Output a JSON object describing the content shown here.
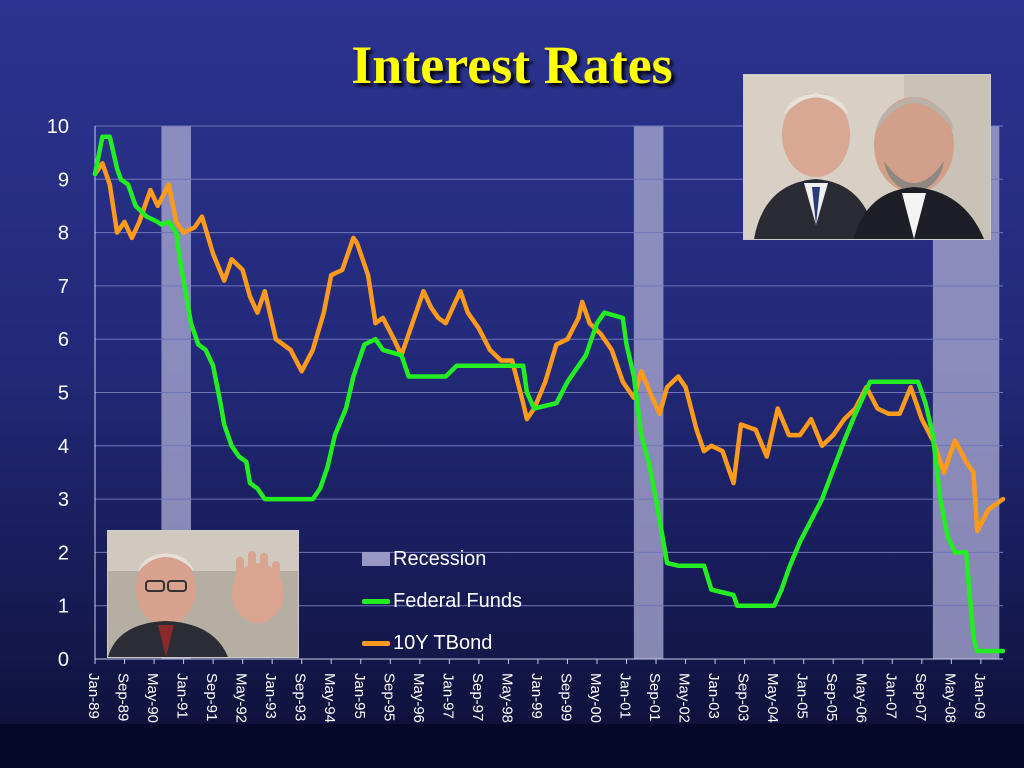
{
  "title": "Interest Rates",
  "chart_data": {
    "type": "line",
    "ylim": [
      0,
      10
    ],
    "y_ticks": [
      0,
      1,
      2,
      3,
      4,
      5,
      6,
      7,
      8,
      9,
      10
    ],
    "x_range": [
      "1989-01",
      "2009-07"
    ],
    "x_ticks": [
      "Jan-89",
      "Sep-89",
      "May-90",
      "Jan-91",
      "Sep-91",
      "May-92",
      "Jan-93",
      "Sep-93",
      "May-94",
      "Jan-95",
      "Sep-95",
      "May-96",
      "Jan-97",
      "Sep-97",
      "May-98",
      "Jan-99",
      "Sep-99",
      "May-00",
      "Jan-01",
      "Sep-01",
      "May-02",
      "Jan-03",
      "Sep-03",
      "May-04",
      "Jan-05",
      "Sep-05",
      "May-06",
      "Jan-07",
      "Sep-07",
      "May-08",
      "Jan-09"
    ],
    "grid": "horizontal",
    "recessions": [
      {
        "start": "1990-07",
        "end": "1991-03"
      },
      {
        "start": "2001-03",
        "end": "2001-11"
      },
      {
        "start": "2007-12",
        "end": "2009-06"
      }
    ],
    "legend": {
      "position": "bottom-center",
      "items": [
        {
          "label": "Recession",
          "color": "#9898c4",
          "kind": "box"
        },
        {
          "label": "Federal Funds",
          "color": "#22ee22",
          "kind": "line"
        },
        {
          "label": "10Y TBond",
          "color": "#ff9a1a",
          "kind": "line"
        }
      ]
    },
    "series": [
      {
        "name": "Federal Funds",
        "color": "#22ee22",
        "points": [
          [
            "1989-01",
            9.1
          ],
          [
            "1989-03",
            9.8
          ],
          [
            "1989-05",
            9.8
          ],
          [
            "1989-07",
            9.2
          ],
          [
            "1989-08",
            9.0
          ],
          [
            "1989-10",
            8.9
          ],
          [
            "1989-12",
            8.5
          ],
          [
            "1990-03",
            8.3
          ],
          [
            "1990-06",
            8.2
          ],
          [
            "1990-07",
            8.15
          ],
          [
            "1990-09",
            8.2
          ],
          [
            "1990-11",
            8.0
          ],
          [
            "1990-12",
            7.5
          ],
          [
            "1991-03",
            6.3
          ],
          [
            "1991-05",
            5.9
          ],
          [
            "1991-07",
            5.8
          ],
          [
            "1991-09",
            5.5
          ],
          [
            "1991-11",
            4.8
          ],
          [
            "1991-12",
            4.4
          ],
          [
            "1992-02",
            4.0
          ],
          [
            "1992-04",
            3.8
          ],
          [
            "1992-06",
            3.7
          ],
          [
            "1992-07",
            3.3
          ],
          [
            "1992-09",
            3.2
          ],
          [
            "1992-11",
            3.0
          ],
          [
            "1993-01",
            3.0
          ],
          [
            "1993-05",
            3.0
          ],
          [
            "1993-09",
            3.0
          ],
          [
            "1993-12",
            3.0
          ],
          [
            "1994-02",
            3.2
          ],
          [
            "1994-04",
            3.6
          ],
          [
            "1994-06",
            4.2
          ],
          [
            "1994-09",
            4.7
          ],
          [
            "1994-11",
            5.3
          ],
          [
            "1995-02",
            5.9
          ],
          [
            "1995-05",
            6.0
          ],
          [
            "1995-07",
            5.8
          ],
          [
            "1995-12",
            5.7
          ],
          [
            "1996-02",
            5.3
          ],
          [
            "1996-06",
            5.3
          ],
          [
            "1996-12",
            5.3
          ],
          [
            "1997-03",
            5.5
          ],
          [
            "1997-12",
            5.5
          ],
          [
            "1998-06",
            5.5
          ],
          [
            "1998-09",
            5.5
          ],
          [
            "1998-10",
            5.0
          ],
          [
            "1998-12",
            4.7
          ],
          [
            "1999-06",
            4.8
          ],
          [
            "1999-09",
            5.2
          ],
          [
            "1999-11",
            5.4
          ],
          [
            "2000-02",
            5.7
          ],
          [
            "2000-05",
            6.3
          ],
          [
            "2000-07",
            6.5
          ],
          [
            "2000-12",
            6.4
          ],
          [
            "2001-01",
            5.9
          ],
          [
            "2001-03",
            5.3
          ],
          [
            "2001-05",
            4.2
          ],
          [
            "2001-07",
            3.7
          ],
          [
            "2001-09",
            3.0
          ],
          [
            "2001-11",
            2.2
          ],
          [
            "2001-12",
            1.8
          ],
          [
            "2002-03",
            1.75
          ],
          [
            "2002-10",
            1.75
          ],
          [
            "2002-12",
            1.3
          ],
          [
            "2003-06",
            1.2
          ],
          [
            "2003-07",
            1.0
          ],
          [
            "2004-05",
            1.0
          ],
          [
            "2004-07",
            1.3
          ],
          [
            "2004-09",
            1.7
          ],
          [
            "2004-12",
            2.2
          ],
          [
            "2005-06",
            3.0
          ],
          [
            "2005-12",
            4.1
          ],
          [
            "2006-03",
            4.6
          ],
          [
            "2006-07",
            5.2
          ],
          [
            "2007-08",
            5.2
          ],
          [
            "2007-10",
            4.8
          ],
          [
            "2007-12",
            4.2
          ],
          [
            "2008-02",
            3.0
          ],
          [
            "2008-04",
            2.3
          ],
          [
            "2008-06",
            2.0
          ],
          [
            "2008-09",
            2.0
          ],
          [
            "2008-11",
            0.4
          ],
          [
            "2008-12",
            0.15
          ],
          [
            "2009-07",
            0.15
          ]
        ]
      },
      {
        "name": "10Y TBond",
        "color": "#ff9a1a",
        "points": [
          [
            "1989-01",
            9.1
          ],
          [
            "1989-03",
            9.3
          ],
          [
            "1989-05",
            8.9
          ],
          [
            "1989-07",
            8.0
          ],
          [
            "1989-09",
            8.2
          ],
          [
            "1989-11",
            7.9
          ],
          [
            "1990-01",
            8.2
          ],
          [
            "1990-04",
            8.8
          ],
          [
            "1990-06",
            8.5
          ],
          [
            "1990-09",
            8.9
          ],
          [
            "1990-11",
            8.2
          ],
          [
            "1991-01",
            8.0
          ],
          [
            "1991-04",
            8.1
          ],
          [
            "1991-06",
            8.3
          ],
          [
            "1991-09",
            7.6
          ],
          [
            "1991-12",
            7.1
          ],
          [
            "1992-02",
            7.5
          ],
          [
            "1992-05",
            7.3
          ],
          [
            "1992-07",
            6.8
          ],
          [
            "1992-09",
            6.5
          ],
          [
            "1992-11",
            6.9
          ],
          [
            "1993-02",
            6.0
          ],
          [
            "1993-06",
            5.8
          ],
          [
            "1993-09",
            5.4
          ],
          [
            "1993-12",
            5.8
          ],
          [
            "1994-03",
            6.5
          ],
          [
            "1994-05",
            7.2
          ],
          [
            "1994-08",
            7.3
          ],
          [
            "1994-11",
            7.9
          ],
          [
            "1994-12",
            7.8
          ],
          [
            "1995-03",
            7.2
          ],
          [
            "1995-05",
            6.3
          ],
          [
            "1995-07",
            6.4
          ],
          [
            "1995-10",
            6.0
          ],
          [
            "1995-12",
            5.7
          ],
          [
            "1996-03",
            6.3
          ],
          [
            "1996-06",
            6.9
          ],
          [
            "1996-08",
            6.6
          ],
          [
            "1996-10",
            6.4
          ],
          [
            "1996-12",
            6.3
          ],
          [
            "1997-02",
            6.6
          ],
          [
            "1997-04",
            6.9
          ],
          [
            "1997-06",
            6.5
          ],
          [
            "1997-09",
            6.2
          ],
          [
            "1997-12",
            5.8
          ],
          [
            "1998-03",
            5.6
          ],
          [
            "1998-06",
            5.6
          ],
          [
            "1998-09",
            4.8
          ],
          [
            "1998-10",
            4.5
          ],
          [
            "1998-12",
            4.7
          ],
          [
            "1999-03",
            5.2
          ],
          [
            "1999-06",
            5.9
          ],
          [
            "1999-09",
            6.0
          ],
          [
            "1999-12",
            6.4
          ],
          [
            "2000-01",
            6.7
          ],
          [
            "2000-03",
            6.3
          ],
          [
            "2000-06",
            6.1
          ],
          [
            "2000-09",
            5.8
          ],
          [
            "2000-12",
            5.2
          ],
          [
            "2001-03",
            4.9
          ],
          [
            "2001-05",
            5.4
          ],
          [
            "2001-08",
            4.9
          ],
          [
            "2001-10",
            4.6
          ],
          [
            "2001-12",
            5.1
          ],
          [
            "2002-03",
            5.3
          ],
          [
            "2002-05",
            5.1
          ],
          [
            "2002-08",
            4.3
          ],
          [
            "2002-10",
            3.9
          ],
          [
            "2002-12",
            4.0
          ],
          [
            "2003-03",
            3.9
          ],
          [
            "2003-06",
            3.3
          ],
          [
            "2003-08",
            4.4
          ],
          [
            "2003-12",
            4.3
          ],
          [
            "2004-03",
            3.8
          ],
          [
            "2004-06",
            4.7
          ],
          [
            "2004-09",
            4.2
          ],
          [
            "2004-12",
            4.2
          ],
          [
            "2005-03",
            4.5
          ],
          [
            "2005-06",
            4.0
          ],
          [
            "2005-09",
            4.2
          ],
          [
            "2005-12",
            4.5
          ],
          [
            "2006-03",
            4.7
          ],
          [
            "2006-06",
            5.1
          ],
          [
            "2006-09",
            4.7
          ],
          [
            "2006-12",
            4.6
          ],
          [
            "2007-03",
            4.6
          ],
          [
            "2007-06",
            5.1
          ],
          [
            "2007-09",
            4.5
          ],
          [
            "2007-12",
            4.1
          ],
          [
            "2008-03",
            3.5
          ],
          [
            "2008-06",
            4.1
          ],
          [
            "2008-09",
            3.7
          ],
          [
            "2008-11",
            3.5
          ],
          [
            "2008-12",
            2.4
          ],
          [
            "2009-03",
            2.8
          ],
          [
            "2009-07",
            3.0
          ]
        ]
      }
    ]
  },
  "photos": {
    "top_right": "portrait-photo-two-men",
    "bottom_left": "portrait-photo-speaker"
  }
}
